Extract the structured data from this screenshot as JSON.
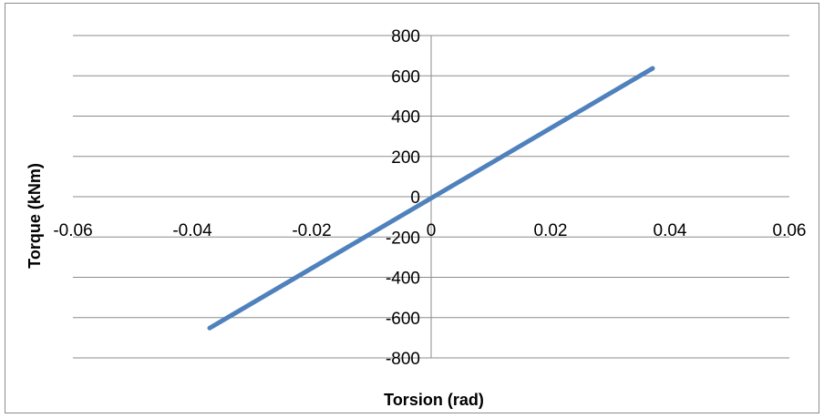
{
  "chart_data": {
    "type": "line",
    "title": "",
    "xlabel": "Torsion (rad)",
    "ylabel": "Torque (kNm)",
    "xlim": [
      -0.06,
      0.06
    ],
    "ylim": [
      -800,
      800
    ],
    "x_ticks": [
      "-0.06",
      "-0.04",
      "-0.02",
      "0",
      "0.02",
      "0.04",
      "0.06"
    ],
    "y_ticks": [
      "800",
      "600",
      "400",
      "200",
      "0",
      "-200",
      "-400",
      "-600",
      "-800"
    ],
    "grid": "horizontal",
    "legend": "none",
    "series": [
      {
        "color": "#4f81bd",
        "x": [
          -0.0371,
          0.0371
        ],
        "y": [
          -652,
          637
        ]
      }
    ]
  }
}
